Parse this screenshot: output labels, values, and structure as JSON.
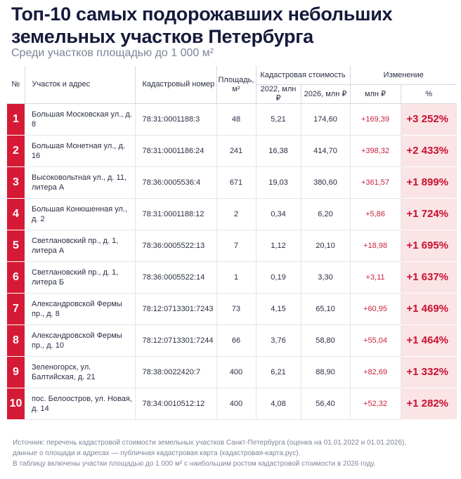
{
  "title": "Топ-10 самых подорожавших небольших земельных участков Петербурга",
  "subtitle": "Среди участков площадью до 1 000 м²",
  "header": {
    "num": "№",
    "address": "Участок и адрес",
    "cadastral": "Кадастровый номер",
    "area": "Площадь, м²",
    "value": "Кадастровая стоимость",
    "change": "Изменение",
    "v2022": "2022, млн ₽",
    "v2026": "2026, млн ₽",
    "mln": "млн ₽",
    "pct": "%"
  },
  "rows": [
    {
      "num": "1",
      "address": "Большая Московская ул., д. 8",
      "cadastral": "78:31:0001188:3",
      "area": "48",
      "v2022": "5,21",
      "v2026": "174,60",
      "mln": "+169,39",
      "pct": "+3 252%"
    },
    {
      "num": "2",
      "address": "Большая Монетная ул., д. 16",
      "cadastral": "78:31:0001186:24",
      "area": "241",
      "v2022": "16,38",
      "v2026": "414,70",
      "mln": "+398,32",
      "pct": "+2 433%"
    },
    {
      "num": "3",
      "address": "Высоковольтная ул., д. 11, литера А",
      "cadastral": "78:36:0005536:4",
      "area": "671",
      "v2022": "19,03",
      "v2026": "380,60",
      "mln": "+361,57",
      "pct": "+1 899%"
    },
    {
      "num": "4",
      "address": "Большая Конюшенная ул., д. 2",
      "cadastral": "78:31:0001188:12",
      "area": "2",
      "v2022": "0,34",
      "v2026": "6,20",
      "mln": "+5,86",
      "pct": "+1 724%"
    },
    {
      "num": "5",
      "address": "Светлановский пр., д. 1, литера А",
      "cadastral": "78:36:0005522:13",
      "area": "7",
      "v2022": "1,12",
      "v2026": "20,10",
      "mln": "+18,98",
      "pct": "+1 695%"
    },
    {
      "num": "6",
      "address": "Светлановский пр., д. 1, литера Б",
      "cadastral": "78:36:0005522:14",
      "area": "1",
      "v2022": "0,19",
      "v2026": "3,30",
      "mln": "+3,11",
      "pct": "+1 637%"
    },
    {
      "num": "7",
      "address": "Александровской Фермы пр., д. 8",
      "cadastral": "78:12:0713301:7243",
      "area": "73",
      "v2022": "4,15",
      "v2026": "65,10",
      "mln": "+60,95",
      "pct": "+1 469%"
    },
    {
      "num": "8",
      "address": "Александровской Фермы пр., д. 10",
      "cadastral": "78:12:0713301:7244",
      "area": "66",
      "v2022": "3,76",
      "v2026": "58,80",
      "mln": "+55,04",
      "pct": "+1 464%"
    },
    {
      "num": "9",
      "address": "Зеленогорск, ул. Балтийская, д. 21",
      "cadastral": "78:38:0022420:7",
      "area": "400",
      "v2022": "6,21",
      "v2026": "88,90",
      "mln": "+82,69",
      "pct": "+1 332%"
    },
    {
      "num": "10",
      "address": "пос. Белоостров, ул. Новая, д. 14",
      "cadastral": "78:34:0010512:12",
      "area": "400",
      "v2022": "4,08",
      "v2026": "56,40",
      "mln": "+52,32",
      "pct": "+1 282%"
    }
  ],
  "source": {
    "line1": "Источник: перечень кадастровой стоимости земельных участков Санкт-Петербурга (оценка на 01.01.2022 и 01.01.2026),",
    "line2": "данные о площади и адресах — публичная кадастровая карта (кадастровая-карта.рус).",
    "line3": "В таблицу включены участки площадью до 1 000 м² с наибольшим ростом кадастровой стоимости в 2026 году."
  }
}
